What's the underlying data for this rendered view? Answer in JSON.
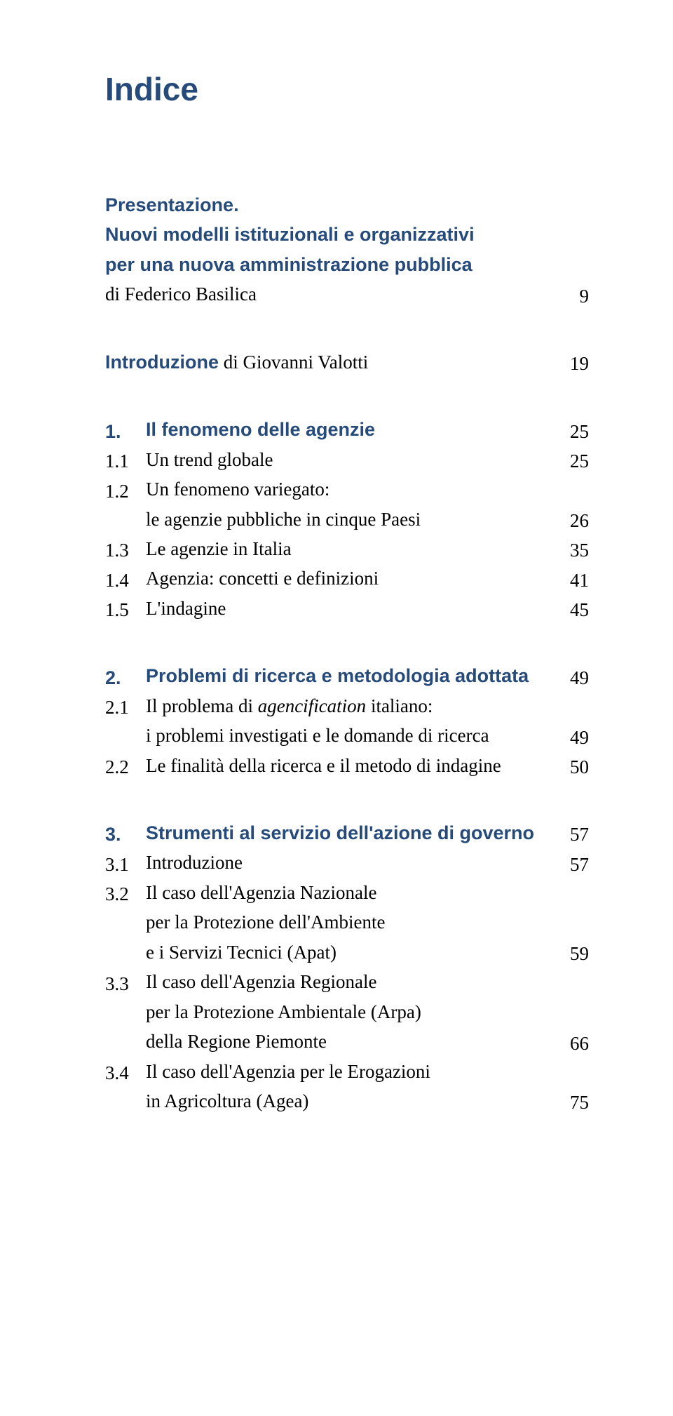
{
  "title": "Indice",
  "colors": {
    "heading": "#264a7a",
    "text": "#000000",
    "background": "#ffffff"
  },
  "presentazione": {
    "heading": "Presentazione.",
    "line1": "Nuovi modelli istituzionali e organizzativi",
    "line2": "per una nuova amministrazione pubblica",
    "author": "di Federico Basilica",
    "page": "9"
  },
  "introduzione": {
    "label_prefix": "Introduzione",
    "author": " di Giovanni Valotti",
    "page": "19"
  },
  "s1": {
    "num": "1.",
    "title": "Il fenomeno delle agenzie",
    "page": "25",
    "items": [
      {
        "num": "1.1",
        "lines": [
          "Un trend globale"
        ],
        "page": "25"
      },
      {
        "num": "1.2",
        "lines": [
          "Un fenomeno variegato:",
          "le agenzie pubbliche in cinque Paesi"
        ],
        "page": "26"
      },
      {
        "num": "1.3",
        "lines": [
          "Le agenzie in Italia"
        ],
        "page": "35"
      },
      {
        "num": "1.4",
        "lines": [
          "Agenzia: concetti e definizioni"
        ],
        "page": "41"
      },
      {
        "num": "1.5",
        "lines": [
          "L'indagine"
        ],
        "page": "45"
      }
    ]
  },
  "s2": {
    "num": "2.",
    "title": "Problemi di ricerca e metodologia adottata",
    "page": "49",
    "i1": {
      "num": "2.1",
      "line1a": "Il problema di ",
      "line1b": "agencification",
      "line1c": " italiano:",
      "line2": "i problemi investigati e le domande di ricerca",
      "page": "49"
    },
    "i2": {
      "num": "2.2",
      "line1": "Le finalità della ricerca e il metodo di indagine",
      "page": "50"
    }
  },
  "s3": {
    "num": "3.",
    "title": "Strumenti al servizio dell'azione di governo",
    "page": "57",
    "i1": {
      "num": "3.1",
      "line1": "Introduzione",
      "page": "57"
    },
    "i2": {
      "num": "3.2",
      "line1": "Il caso dell'Agenzia Nazionale",
      "line2": "per la Protezione dell'Ambiente",
      "line3": "e i Servizi Tecnici (Apat)",
      "page": "59"
    },
    "i3": {
      "num": "3.3",
      "line1": "Il caso dell'Agenzia Regionale",
      "line2": "per la Protezione Ambientale (Arpa)",
      "line3": "della Regione Piemonte",
      "page": "66"
    },
    "i4": {
      "num": "3.4",
      "line1": "Il caso dell'Agenzia per le Erogazioni",
      "line2": "in Agricoltura (Agea)",
      "page": "75"
    }
  }
}
